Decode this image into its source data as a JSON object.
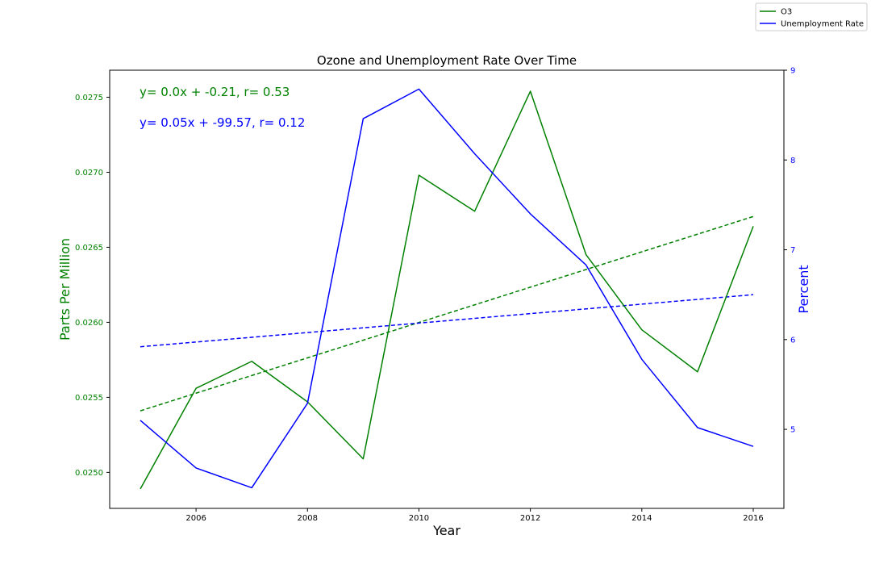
{
  "chart_data": {
    "type": "line",
    "title": "Ozone and Unemployment Rate Over Time",
    "xlabel": "Year",
    "ylabel_left": "Parts Per Million",
    "ylabel_right": "Percent",
    "x": [
      2005,
      2006,
      2007,
      2008,
      2009,
      2010,
      2011,
      2012,
      2013,
      2014,
      2015,
      2016
    ],
    "xlim": [
      2004.45,
      2016.55
    ],
    "ylim_left": [
      0.02476,
      0.02768
    ],
    "ylim_right": [
      4.12,
      9.0
    ],
    "x_ticks": [
      "2006",
      "2008",
      "2010",
      "2012",
      "2014",
      "2016"
    ],
    "y_left_ticks": [
      "0.0250",
      "0.0255",
      "0.0260",
      "0.0265",
      "0.0270",
      "0.0275"
    ],
    "y_right_ticks": [
      "5",
      "6",
      "7",
      "8",
      "9"
    ],
    "series": [
      {
        "name": "O3",
        "axis": "left",
        "color": "#008000",
        "values": [
          0.02489,
          0.02556,
          0.02574,
          0.02547,
          0.02509,
          0.02698,
          0.02674,
          0.02754,
          0.02645,
          0.02595,
          0.02567,
          0.02664
        ]
      },
      {
        "name": "Unemployment Rate",
        "axis": "right",
        "color": "#0000ff",
        "values": [
          5.1,
          4.57,
          4.35,
          5.29,
          8.46,
          8.79,
          8.07,
          7.4,
          6.83,
          5.78,
          5.02,
          4.81
        ]
      }
    ],
    "trendlines": [
      {
        "axis": "left",
        "color": "#008000",
        "start": [
          2005,
          0.02541
        ],
        "end": [
          2016,
          0.026705
        ],
        "style": "dashed"
      },
      {
        "axis": "right",
        "color": "#0000ff",
        "start": [
          2005,
          5.92
        ],
        "end": [
          2016,
          6.5
        ],
        "style": "dashed"
      }
    ],
    "annotations": [
      {
        "text": "y= 0.0x + -0.21, r= 0.53",
        "color": "#008000"
      },
      {
        "text": "y= 0.05x + -99.57, r= 0.12",
        "color": "#0000ff"
      }
    ],
    "legend": {
      "placement": "top-right",
      "entries": [
        "O3",
        "Unemployment Rate"
      ]
    },
    "grid": false
  }
}
